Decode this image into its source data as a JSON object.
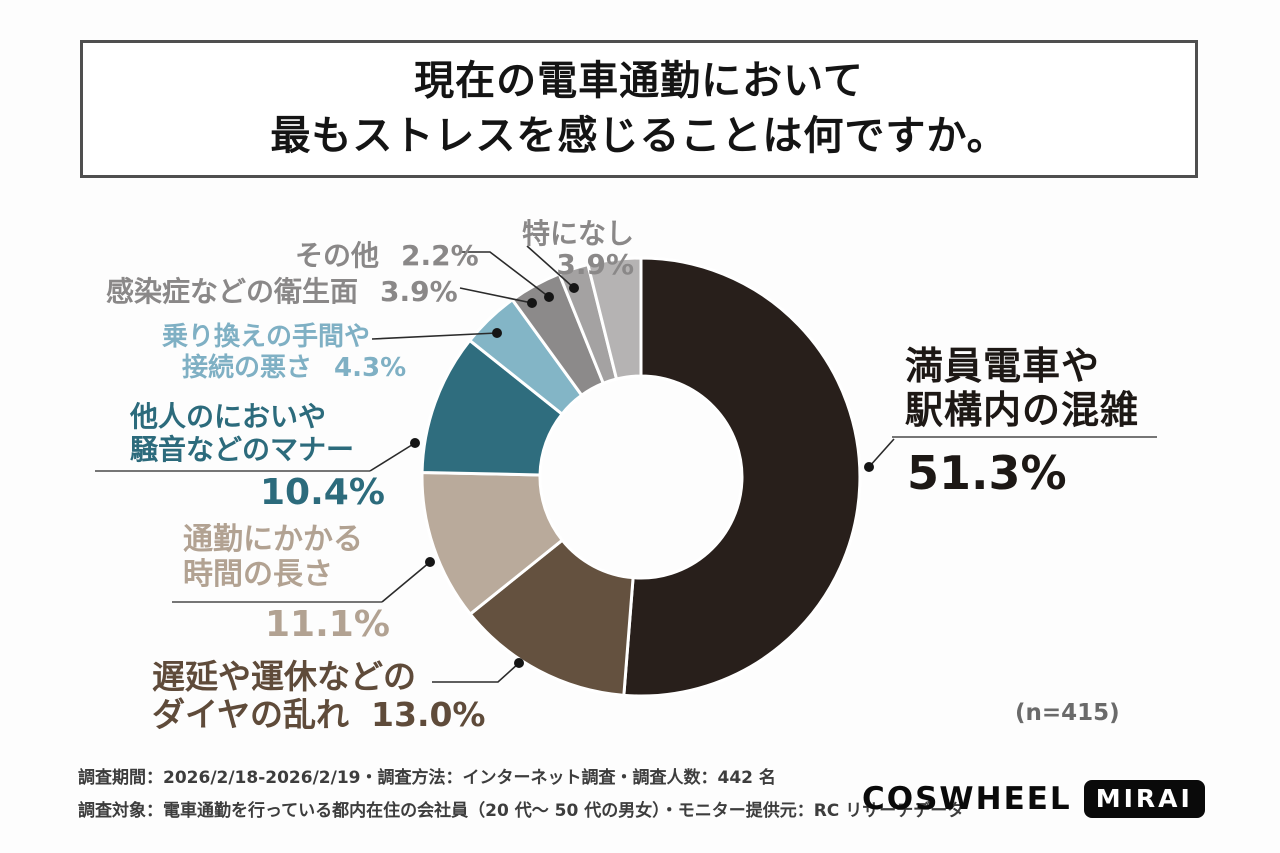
{
  "title": {
    "line1": "現在の電車通勤において",
    "line2": "最もストレスを感じることは何ですか。"
  },
  "sample_size_label": "(n=415)",
  "footer": {
    "line1": "調査期間：2026/2/18-2026/2/19・調査方法：インターネット調査・調査人数：442 名",
    "line2": "調査対象：電車通勤を行っている都内在住の会社員（20 代～ 50 代の男女）・モニター提供元：RC リサーチデータ"
  },
  "logo": {
    "brand": "COSWHEEL",
    "model": "MIRAI"
  },
  "chart_data": {
    "type": "pie",
    "subtype": "donut",
    "title": "現在の電車通勤において最もストレスを感じることは何ですか。",
    "n": 415,
    "unit": "%",
    "start_angle_deg": 0,
    "direction": "clockwise",
    "legend_position": "outside-labels",
    "segments": [
      {
        "key": "crowded-trains",
        "lines": [
          "満員電車や",
          "駅構内の混雑"
        ],
        "pct_display": "51.3%",
        "value": 51.3,
        "color": "#281f1b",
        "label_color": "#1d1815"
      },
      {
        "key": "schedule-disruption",
        "lines": [
          "遅延や運休などの",
          "ダイヤの乱れ"
        ],
        "pct_display": "13.0%",
        "value": 13.0,
        "color": "#64513f",
        "label_color": "#5f4b3a"
      },
      {
        "key": "commute-duration",
        "lines": [
          "通勤にかかる",
          "時間の長さ"
        ],
        "pct_display": "11.1%",
        "value": 11.1,
        "color": "#b9aa9b",
        "label_color": "#b2a292"
      },
      {
        "key": "manners",
        "lines": [
          "他人のにおいや",
          "騒音などのマナー"
        ],
        "pct_display": "10.4%",
        "value": 10.4,
        "color": "#2f6d7e",
        "label_color": "#2c6b7c"
      },
      {
        "key": "transfers",
        "lines": [
          "乗り換えの手間や",
          "接続の悪さ"
        ],
        "pct_display": "4.3%",
        "value": 4.3,
        "color": "#83b5c6",
        "label_color": "#7fb0c4"
      },
      {
        "key": "hygiene",
        "lines": [
          "感染症などの衛生面"
        ],
        "pct_display": "3.9%",
        "value": 3.9,
        "color": "#8c8a8a",
        "label_color": "#8a8888"
      },
      {
        "key": "other",
        "lines": [
          "その他"
        ],
        "pct_display": "2.2%",
        "value": 2.2,
        "color": "#a4a2a2",
        "label_color": "#8a8888"
      },
      {
        "key": "nothing",
        "lines": [
          "特になし"
        ],
        "pct_display": "3.9%",
        "value": 3.9,
        "color": "#b5b3b3",
        "label_color": "#8a8888"
      }
    ]
  }
}
